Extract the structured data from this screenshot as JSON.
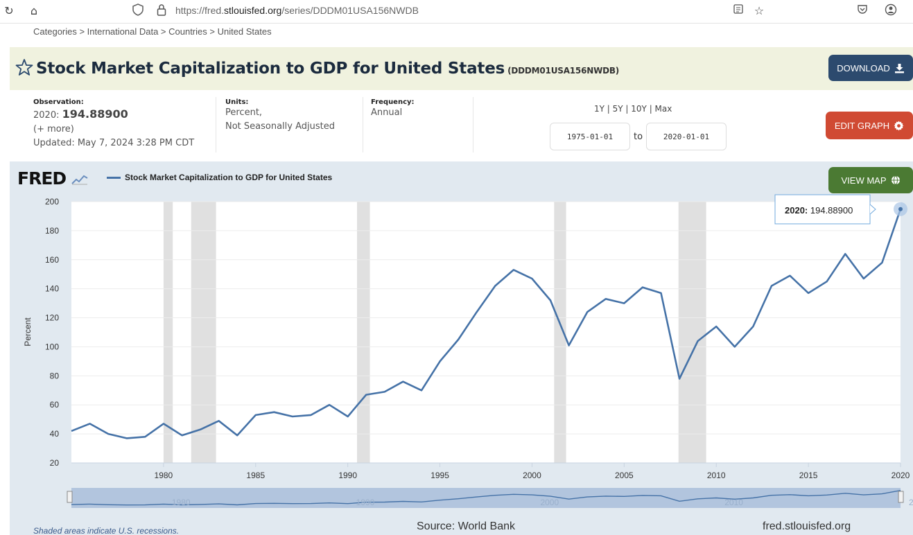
{
  "browser": {
    "url_prefix": "https://fred.",
    "url_domain": "stlouisfed.org",
    "url_path": "/series/DDDM01USA156NWDB"
  },
  "breadcrumb": "Categories > International Data > Countries > United States",
  "header": {
    "title": "Stock Market Capitalization to GDP for United States",
    "series_id": "(DDDM01USA156NWDB)",
    "download_label": "DOWNLOAD"
  },
  "meta": {
    "observation_label": "Observation:",
    "observation_year": "2020:",
    "observation_value": "194.88900",
    "more": "(+ more)",
    "updated": "Updated: May 7, 2024 3:28 PM CDT",
    "units_label": "Units:",
    "units_line1": "Percent,",
    "units_line2": "Not Seasonally Adjusted",
    "frequency_label": "Frequency:",
    "frequency": "Annual",
    "range_links": "1Y | 5Y | 10Y | Max",
    "date_from": "1975-01-01",
    "to": "to",
    "date_to": "2020-01-01",
    "edit_graph_label": "EDIT GRAPH"
  },
  "chart_panel": {
    "logo": "FRED",
    "legend_label": "Stock Market Capitalization to GDP for United States",
    "view_map_label": "VIEW MAP",
    "tooltip_year": "2020:",
    "tooltip_value": "194.88900",
    "shading_note": "Shaded areas indicate U.S. recessions.",
    "source": "Source: World Bank",
    "site": "fred.stlouisfed.org"
  },
  "colors": {
    "line": "#4572a7",
    "recession": "#e0e0e0",
    "title_band": "#f0f2df",
    "download": "#2c4a6e",
    "edit_graph": "#d04a33",
    "view_map": "#4b7a33"
  },
  "chart_data": {
    "type": "line",
    "ylabel": "Percent",
    "ylim": [
      20,
      200
    ],
    "yticks": [
      20,
      40,
      60,
      80,
      100,
      120,
      140,
      160,
      180,
      200
    ],
    "xlim": [
      1975,
      2020
    ],
    "xticks": [
      1980,
      1985,
      1990,
      1995,
      2000,
      2005,
      2010,
      2015,
      2020
    ],
    "navigator_labels": [
      "1980",
      "1990",
      "2000",
      "2010",
      "20"
    ],
    "recessions": [
      [
        1980.0,
        1980.5
      ],
      [
        1981.5,
        1982.85
      ],
      [
        1990.5,
        1991.2
      ],
      [
        2001.2,
        2001.85
      ],
      [
        2007.95,
        2009.45
      ]
    ],
    "series": [
      {
        "name": "Stock Market Capitalization to GDP for United States",
        "x": [
          1975,
          1976,
          1977,
          1978,
          1979,
          1980,
          1981,
          1982,
          1983,
          1984,
          1985,
          1986,
          1987,
          1988,
          1989,
          1990,
          1991,
          1992,
          1993,
          1994,
          1995,
          1996,
          1997,
          1998,
          1999,
          2000,
          2001,
          2002,
          2003,
          2004,
          2005,
          2006,
          2007,
          2008,
          2009,
          2010,
          2011,
          2012,
          2013,
          2014,
          2015,
          2016,
          2017,
          2018,
          2019,
          2020
        ],
        "values": [
          42,
          47,
          40,
          37,
          38,
          47,
          39,
          43,
          49,
          39,
          53,
          55,
          52,
          53,
          60,
          52,
          67,
          69,
          76,
          70,
          90,
          105,
          124,
          142,
          153,
          147,
          132,
          101,
          124,
          133,
          130,
          141,
          137,
          78,
          104,
          114,
          100,
          114,
          142,
          149,
          137,
          145,
          164,
          147,
          158,
          194.889
        ]
      }
    ]
  }
}
